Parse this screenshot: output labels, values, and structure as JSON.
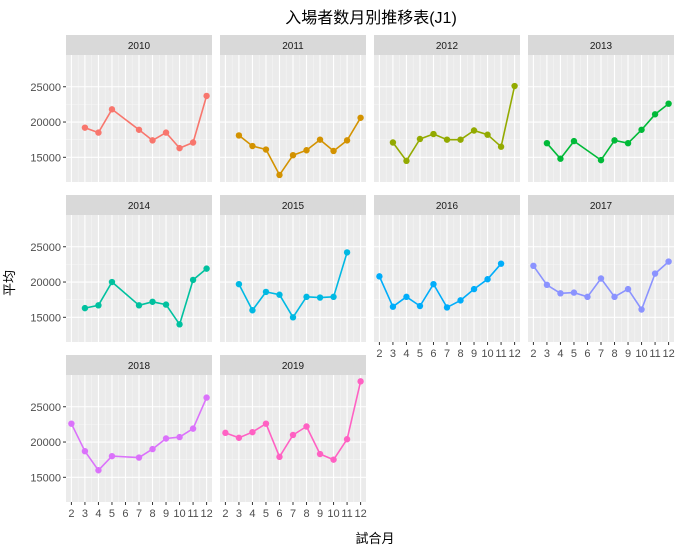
{
  "chart_data": {
    "type": "line",
    "title": "入場者数月別推移表(J1)",
    "xlabel": "試合月",
    "ylabel": "平均",
    "x": [
      2,
      3,
      4,
      5,
      6,
      7,
      8,
      9,
      10,
      11,
      12
    ],
    "x_tick_labels": [
      "2",
      "3",
      "4",
      "5",
      "6",
      "7",
      "8",
      "9",
      "10",
      "11",
      "12"
    ],
    "y_ticks": [
      15000,
      20000,
      25000
    ],
    "y_tick_labels": [
      "15000",
      "20000",
      "25000"
    ],
    "ylim": [
      11500,
      29500
    ],
    "xlim": [
      1.6,
      12.4
    ],
    "grid": true,
    "facet_layout": "4 columns × 3 rows",
    "series": [
      {
        "name": "2010",
        "color": "#F8766D",
        "points": [
          [
            3,
            19200
          ],
          [
            4,
            18500
          ],
          [
            5,
            21800
          ],
          [
            7,
            18900
          ],
          [
            8,
            17400
          ],
          [
            9,
            18500
          ],
          [
            10,
            16300
          ],
          [
            11,
            17100
          ],
          [
            12,
            23700
          ]
        ]
      },
      {
        "name": "2011",
        "color": "#D39200",
        "points": [
          [
            3,
            18100
          ],
          [
            4,
            16600
          ],
          [
            5,
            16100
          ],
          [
            6,
            12500
          ],
          [
            7,
            15300
          ],
          [
            8,
            16000
          ],
          [
            9,
            17500
          ],
          [
            10,
            15900
          ],
          [
            11,
            17400
          ],
          [
            12,
            20600
          ]
        ]
      },
      {
        "name": "2012",
        "color": "#93AA00",
        "points": [
          [
            3,
            17100
          ],
          [
            4,
            14500
          ],
          [
            5,
            17600
          ],
          [
            6,
            18300
          ],
          [
            7,
            17500
          ],
          [
            8,
            17500
          ],
          [
            9,
            18800
          ],
          [
            10,
            18200
          ],
          [
            11,
            16500
          ],
          [
            12,
            25100
          ]
        ]
      },
      {
        "name": "2013",
        "color": "#00BA38",
        "points": [
          [
            3,
            17000
          ],
          [
            4,
            14800
          ],
          [
            5,
            17300
          ],
          [
            7,
            14600
          ],
          [
            8,
            17400
          ],
          [
            9,
            17000
          ],
          [
            10,
            18900
          ],
          [
            11,
            21100
          ],
          [
            12,
            22600
          ]
        ]
      },
      {
        "name": "2014",
        "color": "#00C19F",
        "points": [
          [
            3,
            16300
          ],
          [
            4,
            16700
          ],
          [
            5,
            20000
          ],
          [
            7,
            16700
          ],
          [
            8,
            17200
          ],
          [
            9,
            16800
          ],
          [
            10,
            14000
          ],
          [
            11,
            20300
          ],
          [
            12,
            21900
          ]
        ]
      },
      {
        "name": "2015",
        "color": "#00B9E3",
        "points": [
          [
            3,
            19700
          ],
          [
            4,
            16000
          ],
          [
            5,
            18600
          ],
          [
            6,
            18200
          ],
          [
            7,
            15000
          ],
          [
            8,
            17900
          ],
          [
            9,
            17800
          ],
          [
            10,
            17900
          ],
          [
            11,
            24200
          ]
        ]
      },
      {
        "name": "2016",
        "color": "#00ADFA",
        "points": [
          [
            2,
            20800
          ],
          [
            3,
            16500
          ],
          [
            4,
            17900
          ],
          [
            5,
            16600
          ],
          [
            6,
            19700
          ],
          [
            7,
            16400
          ],
          [
            8,
            17400
          ],
          [
            9,
            19000
          ],
          [
            10,
            20400
          ],
          [
            11,
            22600
          ]
        ]
      },
      {
        "name": "2017",
        "color": "#8B93FF",
        "points": [
          [
            2,
            22300
          ],
          [
            3,
            19600
          ],
          [
            4,
            18400
          ],
          [
            5,
            18500
          ],
          [
            6,
            17900
          ],
          [
            7,
            20500
          ],
          [
            8,
            17900
          ],
          [
            9,
            19000
          ],
          [
            10,
            16100
          ],
          [
            11,
            21200
          ],
          [
            12,
            22900
          ]
        ]
      },
      {
        "name": "2018",
        "color": "#DB72FB",
        "points": [
          [
            2,
            22600
          ],
          [
            3,
            18700
          ],
          [
            4,
            16000
          ],
          [
            5,
            18000
          ],
          [
            7,
            17800
          ],
          [
            8,
            19000
          ],
          [
            9,
            20500
          ],
          [
            10,
            20700
          ],
          [
            11,
            21900
          ],
          [
            12,
            26300
          ]
        ]
      },
      {
        "name": "2019",
        "color": "#FF61C3",
        "points": [
          [
            2,
            21300
          ],
          [
            3,
            20600
          ],
          [
            4,
            21400
          ],
          [
            5,
            22600
          ],
          [
            6,
            17900
          ],
          [
            7,
            21000
          ],
          [
            8,
            22200
          ],
          [
            9,
            18300
          ],
          [
            10,
            17500
          ],
          [
            11,
            20400
          ],
          [
            12,
            28600
          ]
        ]
      }
    ],
    "colors": {
      "panel_background": "#EBEBEB",
      "strip_background": "#D9D9D9",
      "grid_major": "#FFFFFF",
      "grid_minor": "#F5F5F5",
      "tick_text": "#4D4D4D"
    }
  }
}
